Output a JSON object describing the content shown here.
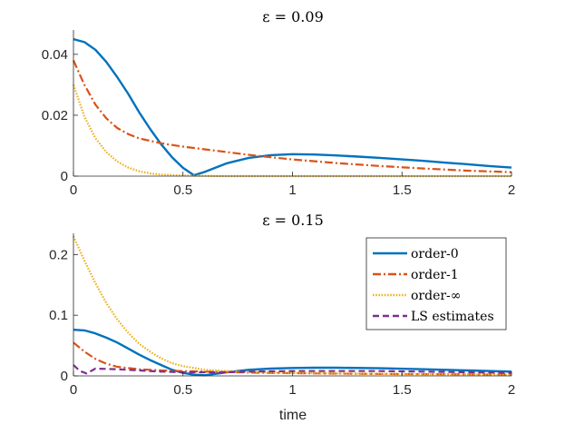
{
  "chart_data": [
    {
      "type": "line",
      "title": "ε = 0.09",
      "xlabel": "",
      "ylabel": "",
      "xlim": [
        0,
        2
      ],
      "ylim": [
        0,
        0.048
      ],
      "xticks": [
        0,
        0.5,
        1,
        1.5,
        2
      ],
      "xtick_labels": [
        "0",
        "0.5",
        "1",
        "1.5",
        "2"
      ],
      "yticks": [
        0,
        0.02,
        0.04
      ],
      "ytick_labels": [
        "0",
        "0.02",
        "0.04"
      ],
      "series": [
        {
          "name": "order-0",
          "color": "#0072BD",
          "style": "solid",
          "x": [
            0,
            0.05,
            0.1,
            0.15,
            0.2,
            0.25,
            0.3,
            0.35,
            0.4,
            0.45,
            0.5,
            0.55,
            0.6,
            0.7,
            0.8,
            0.9,
            1.0,
            1.1,
            1.2,
            1.3,
            1.4,
            1.5,
            1.6,
            1.7,
            1.8,
            1.9,
            2.0
          ],
          "y": [
            0.045,
            0.044,
            0.0415,
            0.0375,
            0.0325,
            0.027,
            0.021,
            0.0155,
            0.0105,
            0.0062,
            0.0027,
            0.0003,
            0.0014,
            0.0042,
            0.006,
            0.0069,
            0.0072,
            0.0071,
            0.0068,
            0.0064,
            0.006,
            0.0055,
            0.005,
            0.0044,
            0.0039,
            0.0033,
            0.0028
          ]
        },
        {
          "name": "order-1",
          "color": "#D95319",
          "style": "dashdot",
          "x": [
            0,
            0.025,
            0.05,
            0.1,
            0.15,
            0.2,
            0.25,
            0.3,
            0.4,
            0.5,
            0.6,
            0.7,
            0.8,
            0.9,
            1.0,
            1.2,
            1.4,
            1.6,
            1.8,
            2.0
          ],
          "y": [
            0.038,
            0.034,
            0.03,
            0.0235,
            0.019,
            0.0158,
            0.0138,
            0.0124,
            0.0108,
            0.0097,
            0.0088,
            0.0079,
            0.007,
            0.0062,
            0.0055,
            0.0043,
            0.0033,
            0.0025,
            0.0018,
            0.0013
          ]
        },
        {
          "name": "order-∞",
          "color": "#EDB120",
          "style": "dotted",
          "x": [
            0,
            0.05,
            0.1,
            0.15,
            0.2,
            0.25,
            0.3,
            0.35,
            0.4,
            0.5,
            0.6,
            0.7,
            1.0,
            1.5,
            2.0
          ],
          "y": [
            0.03,
            0.0195,
            0.0125,
            0.0079,
            0.0048,
            0.0028,
            0.0016,
            0.0009,
            0.0005,
            0.0002,
            0.0001,
            0.0,
            0.0,
            0.0,
            0.0
          ]
        }
      ]
    },
    {
      "type": "line",
      "title": "ε = 0.15",
      "xlabel": "time",
      "ylabel": "",
      "xlim": [
        0,
        2
      ],
      "ylim": [
        0,
        0.235
      ],
      "xticks": [
        0,
        0.5,
        1,
        1.5,
        2
      ],
      "xtick_labels": [
        "0",
        "0.5",
        "1",
        "1.5",
        "2"
      ],
      "yticks": [
        0,
        0.1,
        0.2
      ],
      "ytick_labels": [
        "0",
        "0.1",
        "0.2"
      ],
      "legend": {
        "position": "top-right",
        "entries": [
          "order-0",
          "order-1",
          "order-∞",
          "LS estimates"
        ]
      },
      "series": [
        {
          "name": "order-0",
          "color": "#0072BD",
          "style": "solid",
          "x": [
            0,
            0.05,
            0.1,
            0.15,
            0.2,
            0.25,
            0.3,
            0.35,
            0.4,
            0.45,
            0.5,
            0.55,
            0.6,
            0.7,
            0.8,
            0.9,
            1.0,
            1.1,
            1.2,
            1.4,
            1.6,
            1.8,
            2.0
          ],
          "y": [
            0.076,
            0.075,
            0.07,
            0.063,
            0.055,
            0.045,
            0.035,
            0.026,
            0.018,
            0.01,
            0.005,
            0.002,
            0.001,
            0.006,
            0.01,
            0.012,
            0.013,
            0.0135,
            0.0135,
            0.0125,
            0.011,
            0.009,
            0.007
          ]
        },
        {
          "name": "order-1",
          "color": "#D95319",
          "style": "dashdot",
          "x": [
            0,
            0.05,
            0.1,
            0.15,
            0.2,
            0.3,
            0.4,
            0.5,
            0.6,
            0.8,
            1.0,
            1.2,
            1.5,
            1.8,
            2.0
          ],
          "y": [
            0.055,
            0.04,
            0.028,
            0.02,
            0.015,
            0.011,
            0.009,
            0.008,
            0.007,
            0.0055,
            0.0045,
            0.0037,
            0.003,
            0.0025,
            0.002
          ]
        },
        {
          "name": "order-∞",
          "color": "#EDB120",
          "style": "dotted",
          "x": [
            0,
            0.05,
            0.1,
            0.15,
            0.2,
            0.25,
            0.3,
            0.35,
            0.4,
            0.45,
            0.5,
            0.6,
            0.7,
            0.8,
            1.0,
            1.2,
            1.5,
            2.0
          ],
          "y": [
            0.23,
            0.19,
            0.153,
            0.12,
            0.093,
            0.071,
            0.053,
            0.04,
            0.029,
            0.021,
            0.016,
            0.01,
            0.008,
            0.0065,
            0.005,
            0.004,
            0.003,
            0.002
          ]
        },
        {
          "name": "LS estimates",
          "color": "#7E2F8E",
          "style": "dashed",
          "x": [
            0,
            0.03,
            0.06,
            0.1,
            0.2,
            0.3,
            0.4,
            0.5,
            0.6,
            0.7,
            0.8,
            1.0,
            1.2,
            1.4,
            1.6,
            1.8,
            2.0
          ],
          "y": [
            0.018,
            0.008,
            0.004,
            0.012,
            0.011,
            0.009,
            0.007,
            0.006,
            0.006,
            0.006,
            0.007,
            0.008,
            0.008,
            0.008,
            0.007,
            0.006,
            0.005
          ]
        }
      ]
    }
  ]
}
